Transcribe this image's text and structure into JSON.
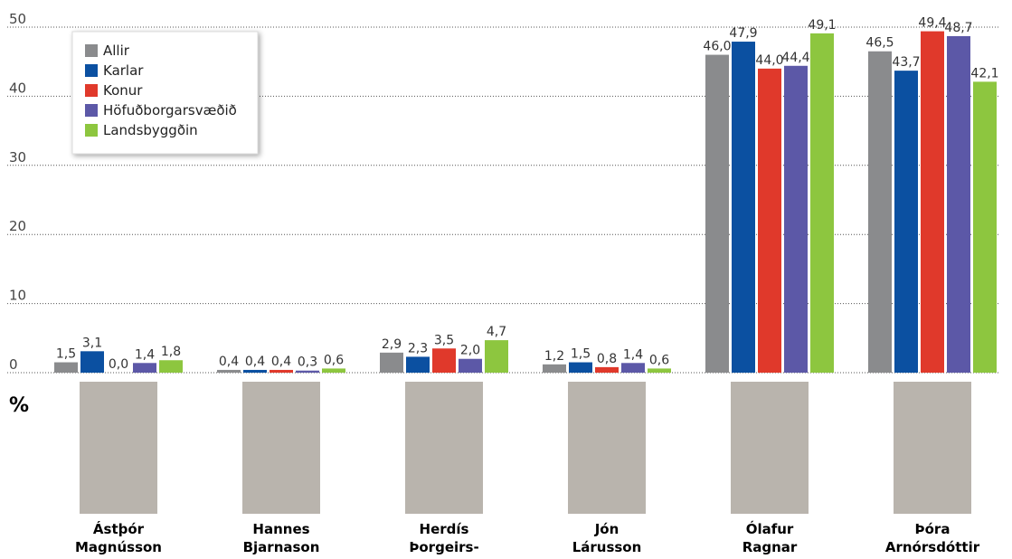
{
  "chart_data": {
    "type": "bar",
    "categories": [
      [
        "Ástþór",
        "Magnússon"
      ],
      [
        "Hannes",
        "Bjarnason"
      ],
      [
        "Herdís",
        "Þorgeirs-"
      ],
      [
        "Jón",
        "Lárusson"
      ],
      [
        "Ólafur",
        "Ragnar"
      ],
      [
        "Þóra",
        "Arnórsdóttir"
      ]
    ],
    "series": [
      {
        "name": "Allir",
        "color": "#8a8b8d",
        "values": [
          1.5,
          0.4,
          2.9,
          1.2,
          46.0,
          46.5
        ],
        "value_labels": [
          "1,5",
          "0,4",
          "2,9",
          "1,2",
          "46,0",
          "46,5"
        ]
      },
      {
        "name": "Karlar",
        "color": "#0b50a1",
        "values": [
          3.1,
          0.4,
          2.3,
          1.5,
          47.9,
          43.7
        ],
        "value_labels": [
          "3,1",
          "0,4",
          "2,3",
          "1,5",
          "47,9",
          "43,7"
        ]
      },
      {
        "name": "Konur",
        "color": "#e0392b",
        "values": [
          0.0,
          0.4,
          3.5,
          0.8,
          44.0,
          49.4
        ],
        "value_labels": [
          "0,0",
          "0,4",
          "3,5",
          "0,8",
          "44,0",
          "49,4"
        ]
      },
      {
        "name": "Höfuðborgarsvæðið",
        "color": "#5c58a7",
        "values": [
          1.4,
          0.3,
          2.0,
          1.4,
          44.4,
          48.7
        ],
        "value_labels": [
          "1,4",
          "0,3",
          "2,0",
          "1,4",
          "44,4",
          "48,7"
        ]
      },
      {
        "name": "Landsbyggðin",
        "color": "#8dc63f",
        "values": [
          1.8,
          0.6,
          4.7,
          0.6,
          49.1,
          42.1
        ],
        "value_labels": [
          "1,8",
          "0,6",
          "4,7",
          "0,6",
          "49,1",
          "42,1"
        ]
      }
    ],
    "ylim": [
      0,
      50
    ],
    "yticks": [
      0,
      10,
      20,
      30,
      40,
      50
    ],
    "grid": true,
    "y_unit": "%",
    "legend": "upper left"
  }
}
